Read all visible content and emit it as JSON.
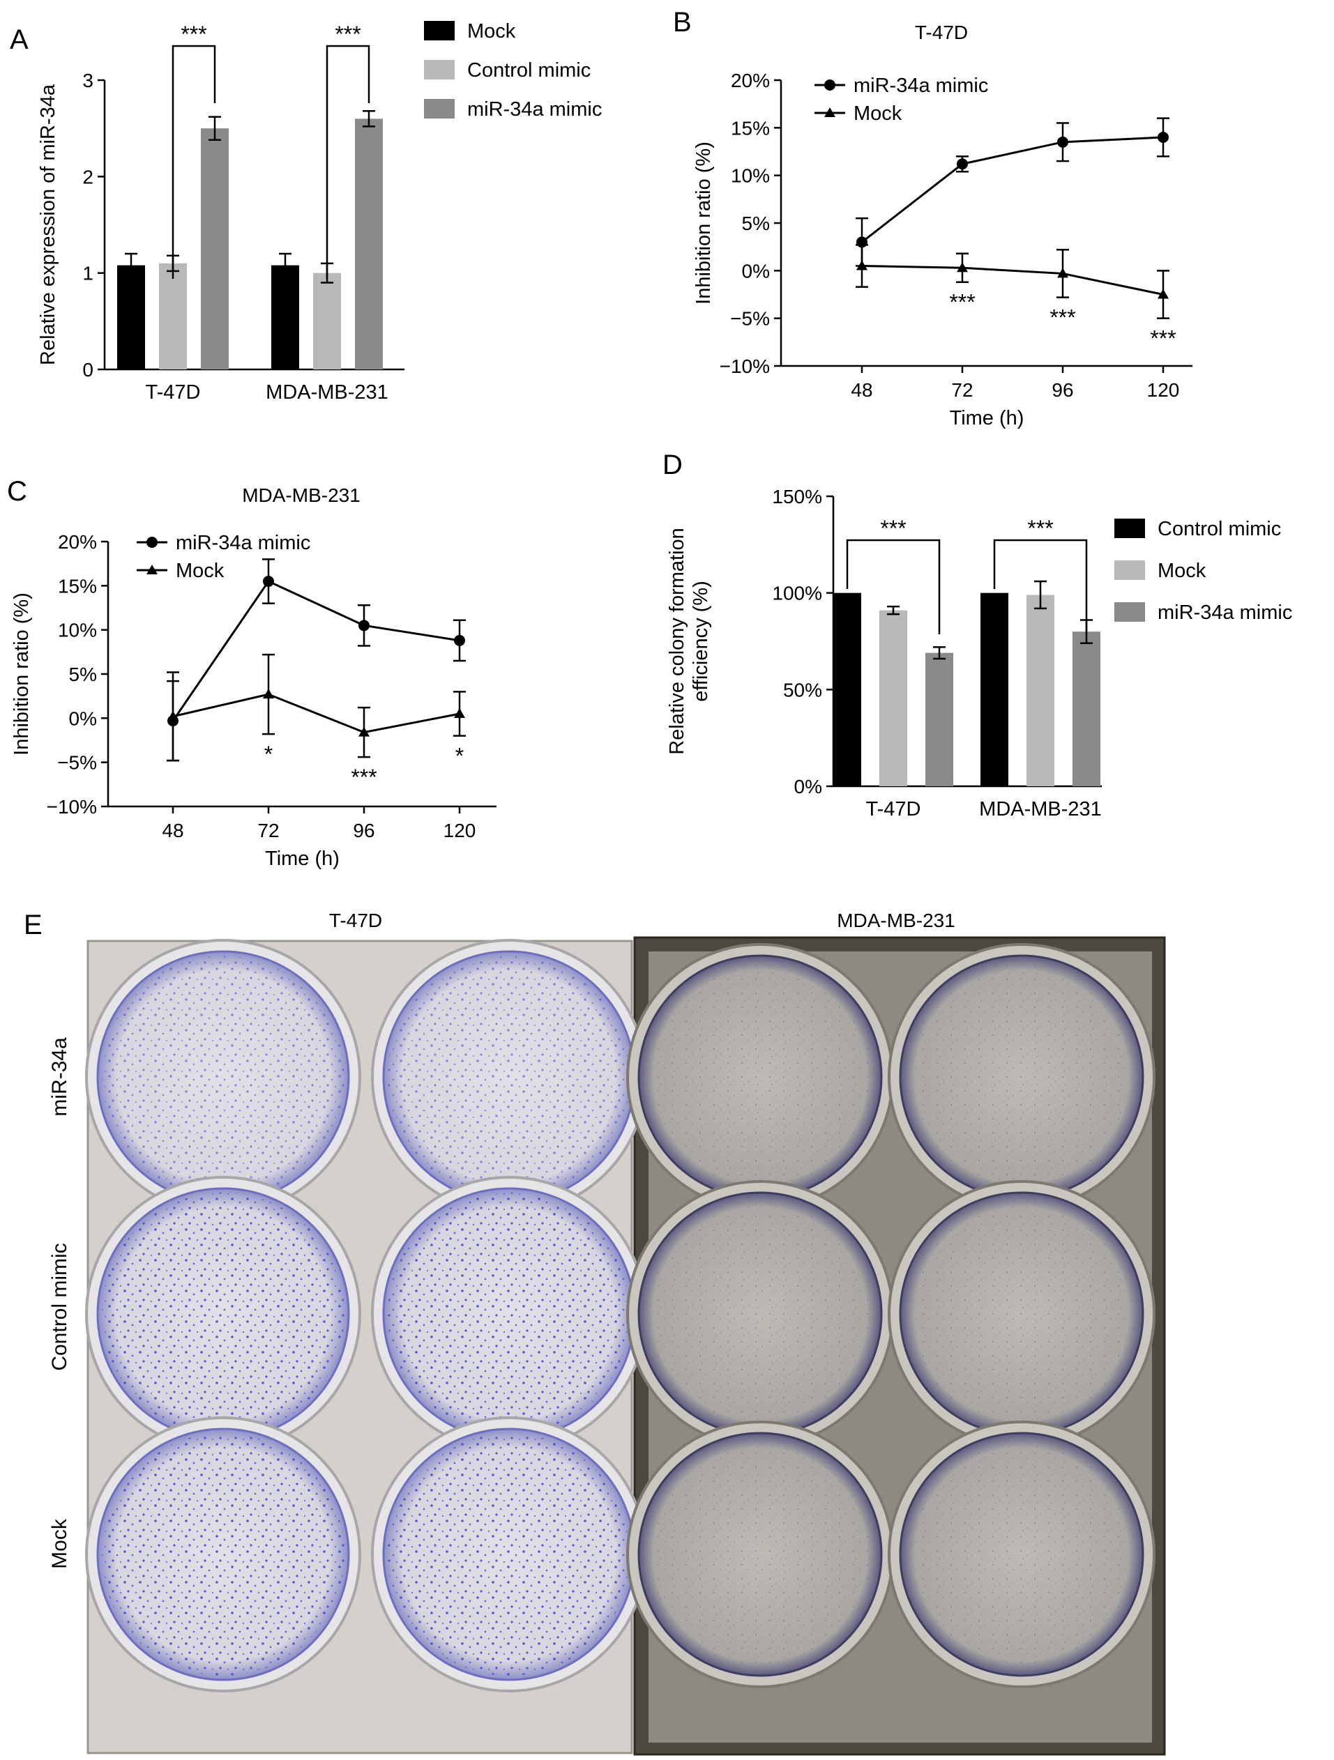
{
  "panels": {
    "A": {
      "letter": "A"
    },
    "B": {
      "letter": "B",
      "title": "T-47D"
    },
    "C": {
      "letter": "C",
      "title": "MDA-MB-231"
    },
    "D": {
      "letter": "D"
    },
    "E": {
      "letter": "E",
      "col_titles": [
        "T-47D",
        "MDA-MB-231"
      ],
      "row_labels": [
        "miR-34a",
        "Control mimic",
        "Mock"
      ]
    }
  },
  "colors": {
    "black": "#000000",
    "light_gray": "#b8b8b8",
    "mid_gray": "#8a8a8a",
    "plate_left": "#d8d4cf",
    "plate_right": "#4a463c",
    "dots": "#4a4fd6"
  },
  "chart_data": [
    {
      "id": "A",
      "type": "bar",
      "categories": [
        "T-47D",
        "MDA-MB-231"
      ],
      "series": [
        {
          "name": "Mock",
          "values": [
            1.08,
            1.08
          ],
          "errors": [
            0.12,
            0.12
          ]
        },
        {
          "name": "Control mimic",
          "values": [
            1.1,
            1.0
          ],
          "errors": [
            0.08,
            0.1
          ]
        },
        {
          "name": "miR-34a mimic",
          "values": [
            2.5,
            2.6
          ],
          "errors": [
            0.12,
            0.08
          ]
        }
      ],
      "ylabel": "Relative expression of miR-34a",
      "ylim": [
        0,
        3
      ],
      "yticks": [
        "0",
        "1",
        "2",
        "3"
      ],
      "significance": [
        "***",
        "***"
      ],
      "legend": "top-right"
    },
    {
      "id": "B",
      "type": "line",
      "title": "T-47D",
      "x": [
        48,
        72,
        96,
        120
      ],
      "xticks": [
        "48",
        "72",
        "96",
        "120"
      ],
      "series": [
        {
          "name": "miR-34a mimic",
          "marker": "circle",
          "values": [
            3.0,
            11.2,
            13.5,
            14.0
          ],
          "errors": [
            2.5,
            0.8,
            2.0,
            2.0
          ]
        },
        {
          "name": "Mock",
          "marker": "triangle",
          "values": [
            0.5,
            0.3,
            -0.3,
            -2.5
          ],
          "errors": [
            2.2,
            1.5,
            2.5,
            2.5
          ]
        }
      ],
      "xlabel": "Time (h)",
      "ylabel": "Inhibition ratio (%)",
      "ylim": [
        -10,
        20
      ],
      "yticks": [
        "−10%",
        "−5%",
        "0%",
        "5%",
        "10%",
        "15%",
        "20%"
      ],
      "significance": [
        "",
        "***",
        "***",
        "***"
      ],
      "legend": "top-left"
    },
    {
      "id": "C",
      "type": "line",
      "title": "MDA-MB-231",
      "x": [
        48,
        72,
        96,
        120
      ],
      "xticks": [
        "48",
        "72",
        "96",
        "120"
      ],
      "series": [
        {
          "name": "miR-34a mimic",
          "marker": "circle",
          "values": [
            -0.3,
            15.5,
            10.5,
            8.8
          ],
          "errors": [
            4.5,
            2.5,
            2.3,
            2.3
          ]
        },
        {
          "name": "Mock",
          "marker": "triangle",
          "values": [
            0.2,
            2.7,
            -1.6,
            0.5
          ],
          "errors": [
            5.0,
            4.5,
            2.8,
            2.5
          ]
        }
      ],
      "xlabel": "Time (h)",
      "ylabel": "Inhibition ratio (%)",
      "ylim": [
        -10,
        20
      ],
      "yticks": [
        "−10%",
        "−5%",
        "0%",
        "5%",
        "10%",
        "15%",
        "20%"
      ],
      "significance": [
        "",
        "*",
        "***",
        "*"
      ],
      "legend": "top-left"
    },
    {
      "id": "D",
      "type": "bar",
      "categories": [
        "T-47D",
        "MDA-MB-231"
      ],
      "series": [
        {
          "name": "Control mimic",
          "values": [
            100,
            100
          ],
          "errors": [
            0,
            0
          ]
        },
        {
          "name": "Mock",
          "values": [
            91,
            99
          ],
          "errors": [
            2,
            7
          ]
        },
        {
          "name": "miR-34a mimic",
          "values": [
            69,
            80
          ],
          "errors": [
            3,
            6
          ]
        }
      ],
      "ylabel": "Relative colony formation efficiency (%)",
      "ylabel_lines": [
        "Relative colony formation",
        "efficiency (%)"
      ],
      "ylim": [
        0,
        150
      ],
      "yticks": [
        "0%",
        "50%",
        "100%",
        "150%"
      ],
      "significance": [
        "***",
        "***"
      ],
      "legend": "top-right"
    }
  ]
}
